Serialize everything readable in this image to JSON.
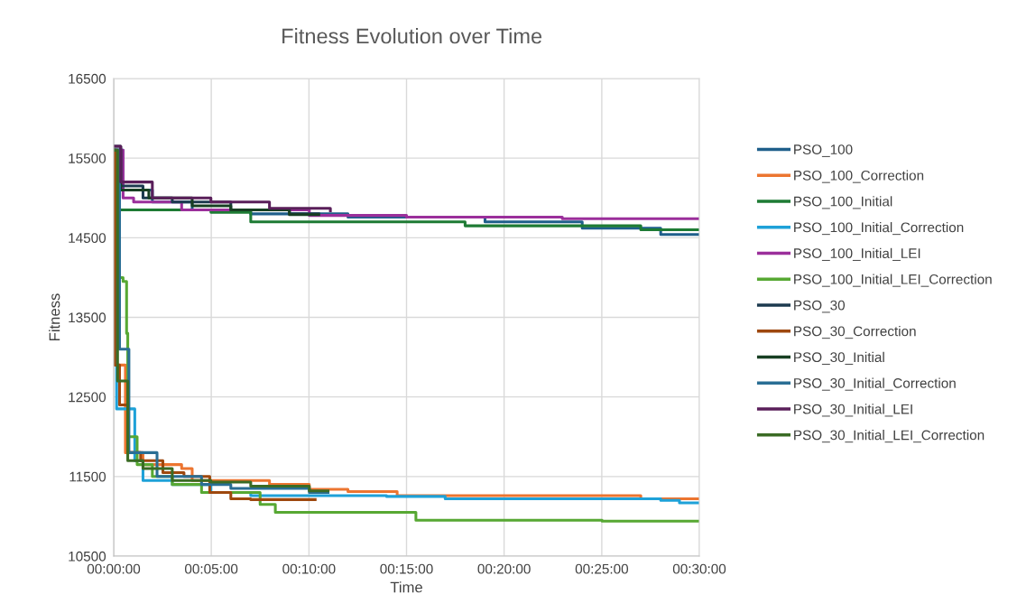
{
  "chart_data": {
    "type": "step",
    "title": "Fitness Evolution over Time",
    "xlabel": "Time",
    "ylabel": "Fitness",
    "xlim": [
      0,
      0.5
    ],
    "xticks": [
      {
        "value": 0,
        "label": "00:00:00"
      },
      {
        "value": 0.0833,
        "label": "00:05:00"
      },
      {
        "value": 0.1667,
        "label": "00:10:00"
      },
      {
        "value": 0.25,
        "label": "00:15:00"
      },
      {
        "value": 0.3333,
        "label": "00:20:00"
      },
      {
        "value": 0.4167,
        "label": "00:25:00"
      },
      {
        "value": 0.5,
        "label": "00:30:00"
      }
    ],
    "ylim": [
      10500,
      16500
    ],
    "yticks": [
      10500,
      11500,
      12500,
      13500,
      14500,
      15500,
      16500
    ],
    "grid": true,
    "legend": "right",
    "marker": "none",
    "line_style": "solid",
    "series": [
      {
        "name": "PSO_100",
        "color": "#1f5f8b",
        "x": [
          0,
          0.008,
          0.033,
          0.067,
          0.117,
          0.2,
          0.317,
          0.4,
          0.467,
          0.5
        ],
        "values": [
          15600,
          15100,
          14950,
          14850,
          14800,
          14760,
          14700,
          14620,
          14540,
          14540
        ]
      },
      {
        "name": "PSO_100_Correction",
        "color": "#ec7530",
        "x": [
          0,
          0.002,
          0.01,
          0.025,
          0.058,
          0.067,
          0.133,
          0.167,
          0.2,
          0.242,
          0.45,
          0.5
        ],
        "values": [
          15600,
          12900,
          11800,
          11650,
          11600,
          11450,
          11400,
          11340,
          11310,
          11260,
          11220,
          11220
        ]
      },
      {
        "name": "PSO_100_Initial",
        "color": "#1e7b34",
        "x": [
          0,
          0.005,
          0.083,
          0.117,
          0.3,
          0.45,
          0.5
        ],
        "values": [
          15500,
          14850,
          14820,
          14700,
          14650,
          14600,
          14600
        ]
      },
      {
        "name": "PSO_100_Initial_Correction",
        "color": "#1ea1d8",
        "x": [
          0,
          0.0025,
          0.018,
          0.025,
          0.05,
          0.083,
          0.117,
          0.233,
          0.283,
          0.467,
          0.483,
          0.5
        ],
        "values": [
          15600,
          12350,
          11700,
          11450,
          11400,
          11300,
          11260,
          11250,
          11220,
          11200,
          11170,
          11170
        ]
      },
      {
        "name": "PSO_100_Initial_LEI",
        "color": "#9b2f9b",
        "x": [
          0,
          0.008,
          0.017,
          0.058,
          0.167,
          0.25,
          0.383,
          0.5
        ],
        "values": [
          15600,
          15000,
          14950,
          14850,
          14780,
          14760,
          14740,
          14740
        ]
      },
      {
        "name": "PSO_100_Initial_LEI_Correction",
        "color": "#57a833",
        "x": [
          0,
          0.0017,
          0.008,
          0.011,
          0.012,
          0.02,
          0.033,
          0.05,
          0.075,
          0.125,
          0.138,
          0.258,
          0.417,
          0.5
        ],
        "values": [
          15600,
          14000,
          13950,
          13300,
          12000,
          11650,
          11500,
          11400,
          11300,
          11150,
          11050,
          10950,
          10940,
          10940
        ]
      },
      {
        "name": "PSO_30",
        "color": "#1c3a4f",
        "x": [
          0,
          0.006,
          0.025,
          0.05,
          0.1,
          0.15,
          0.175
        ],
        "values": [
          15650,
          15150,
          15000,
          14950,
          14850,
          14800,
          14800
        ]
      },
      {
        "name": "PSO_30_Correction",
        "color": "#9e480e",
        "x": [
          0,
          0.001,
          0.005,
          0.012,
          0.023,
          0.042,
          0.06,
          0.082,
          0.1,
          0.117,
          0.172
        ],
        "values": [
          15600,
          12900,
          12400,
          11800,
          11700,
          11550,
          11500,
          11300,
          11220,
          11210,
          11210
        ]
      },
      {
        "name": "PSO_30_Initial",
        "color": "#173f22",
        "x": [
          0,
          0.006,
          0.03,
          0.067,
          0.1,
          0.15,
          0.175
        ],
        "values": [
          15600,
          15100,
          15000,
          14900,
          14850,
          14790,
          14790
        ]
      },
      {
        "name": "PSO_30_Initial_Correction",
        "color": "#2a6e94",
        "x": [
          0,
          0.005,
          0.013,
          0.037,
          0.075,
          0.1,
          0.167,
          0.183
        ],
        "values": [
          15600,
          13100,
          11800,
          11500,
          11400,
          11350,
          11300,
          11300
        ]
      },
      {
        "name": "PSO_30_Initial_LEI",
        "color": "#5a1f5a",
        "x": [
          0,
          0.006,
          0.033,
          0.083,
          0.133,
          0.185
        ],
        "values": [
          15650,
          15200,
          15000,
          14950,
          14870,
          14840
        ]
      },
      {
        "name": "PSO_30_Initial_LEI_Correction",
        "color": "#3a6b24",
        "x": [
          0,
          0.0033,
          0.012,
          0.025,
          0.05,
          0.083,
          0.117,
          0.167,
          0.183
        ],
        "values": [
          15600,
          12700,
          11700,
          11600,
          11450,
          11430,
          11380,
          11320,
          11320
        ]
      }
    ]
  }
}
